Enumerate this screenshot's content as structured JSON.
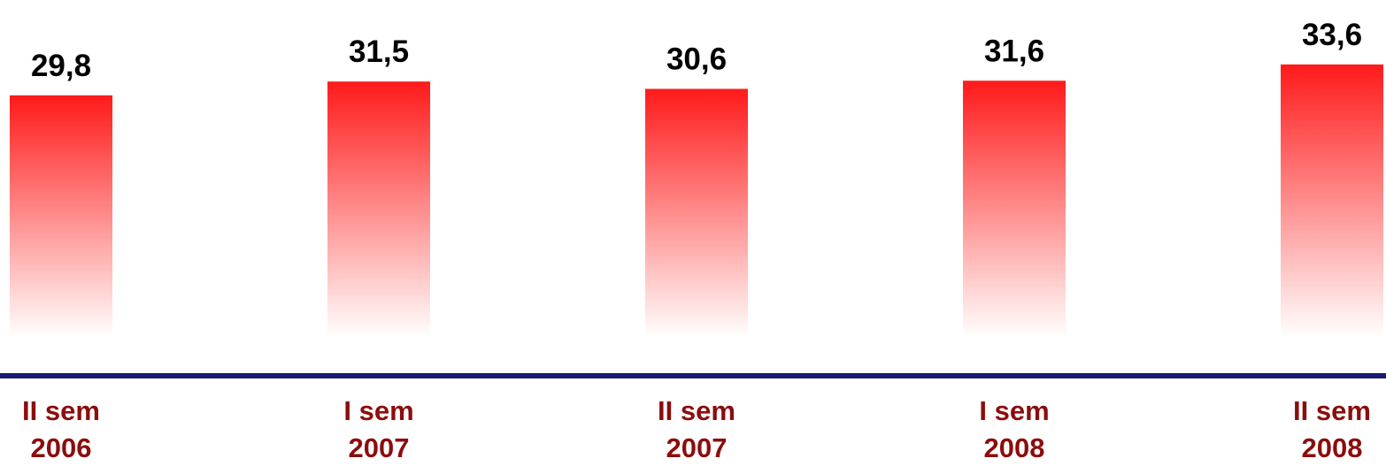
{
  "chart_data": {
    "type": "bar",
    "categories": [
      "II sem\n2006",
      "I sem\n2007",
      "II sem\n2007",
      "I sem\n2008",
      "II sem\n2008"
    ],
    "values": [
      29.8,
      31.5,
      30.6,
      31.6,
      33.6
    ],
    "value_labels": [
      "29,8",
      "31,5",
      "30,6",
      "31,6",
      "33,6"
    ],
    "color": "#ff1a1a",
    "ylim": [
      0,
      40
    ]
  }
}
